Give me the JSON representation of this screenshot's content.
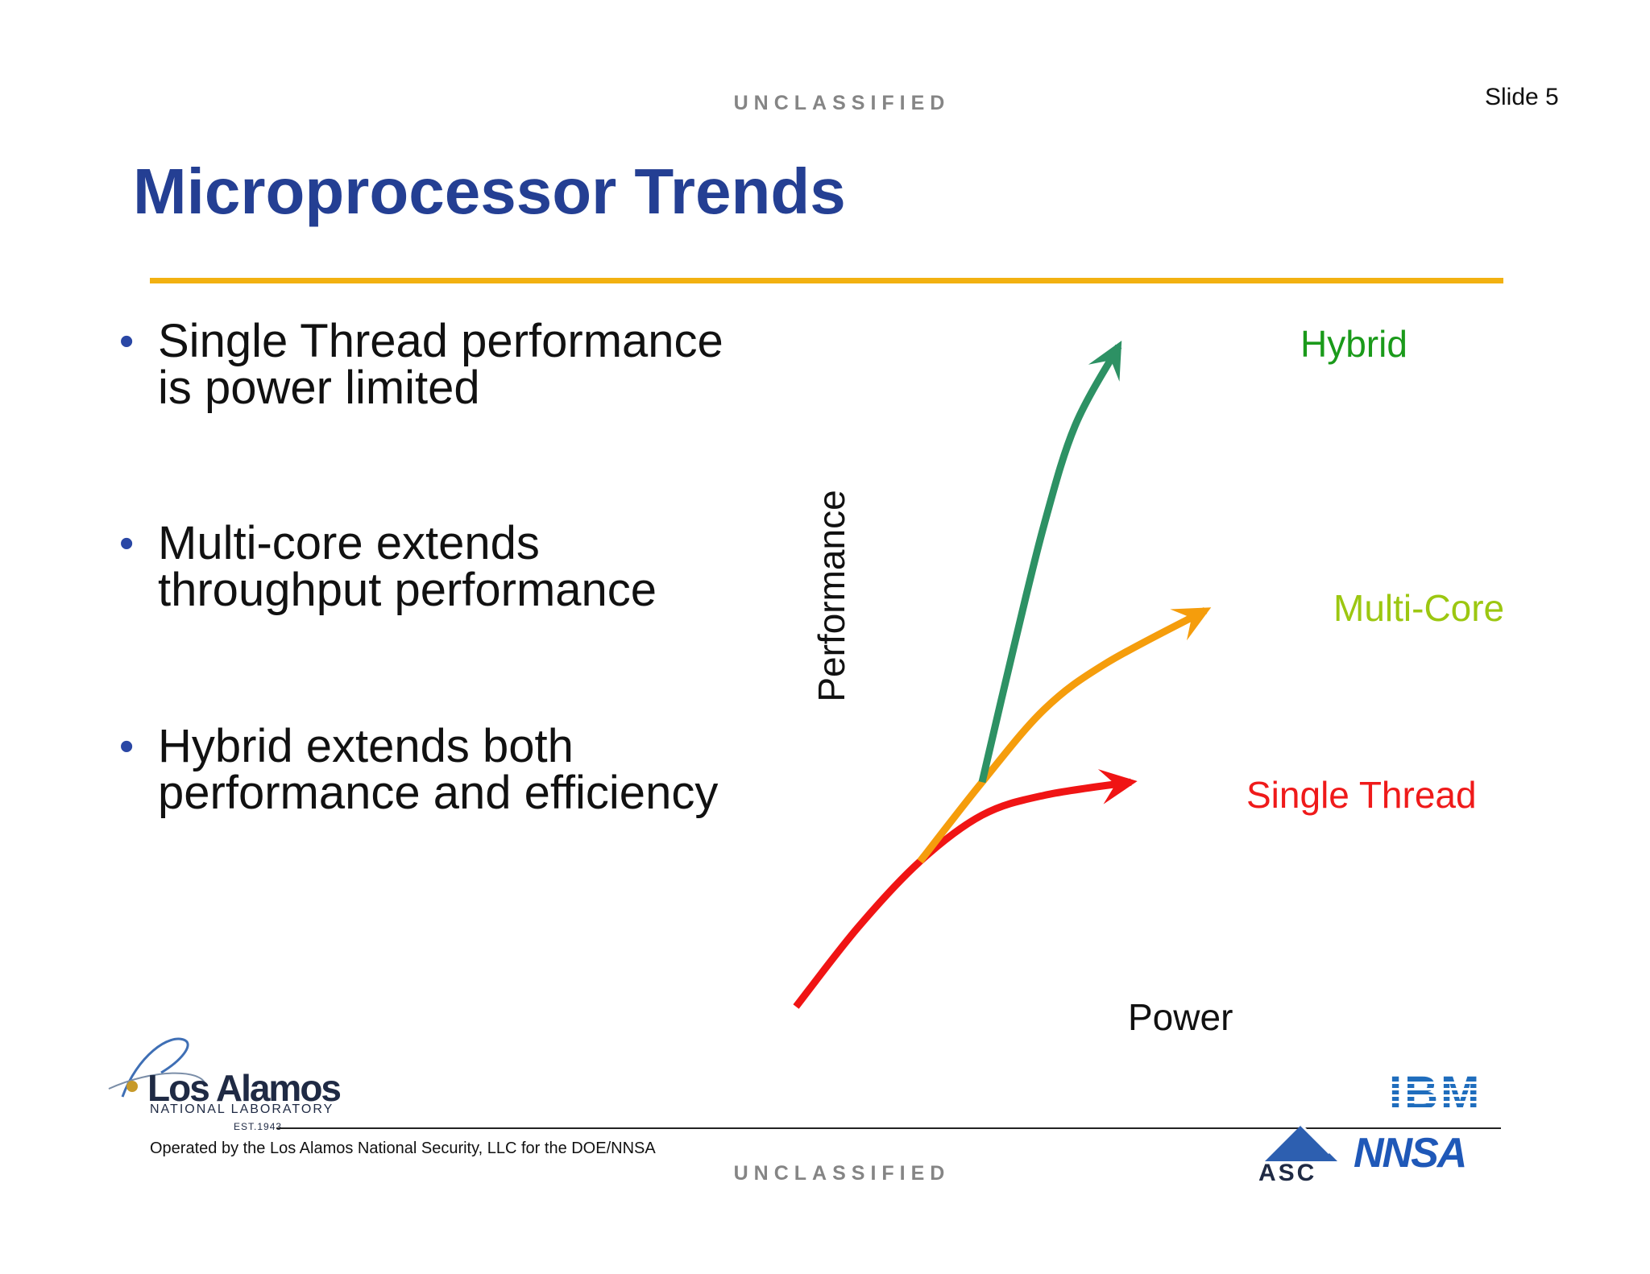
{
  "header": {
    "classification": "UNCLASSIFIED",
    "slide_number": "Slide 5"
  },
  "title": "Microprocessor Trends",
  "bullets": [
    {
      "text": "Single Thread performance\nis power limited"
    },
    {
      "text": "Multi-core extends\nthroughput performance"
    },
    {
      "text": "Hybrid extends both\nperformance and efficiency"
    }
  ],
  "chart_data": {
    "type": "line",
    "title": "",
    "xlabel": "Power",
    "ylabel": "Performance",
    "xlim": [
      0,
      10
    ],
    "ylim": [
      0,
      10
    ],
    "grid": false,
    "legend": "inline labels at line ends",
    "series": [
      {
        "name": "Single Thread",
        "color": "#f01414",
        "x": [
          0.0,
          1.0,
          2.0,
          3.0,
          4.0,
          5.4
        ],
        "y": [
          0.0,
          1.2,
          2.2,
          2.9,
          3.2,
          3.4
        ]
      },
      {
        "name": "Multi-Core",
        "color": "#f59d0c",
        "x": [
          2.0,
          3.0,
          4.0,
          5.0,
          6.6
        ],
        "y": [
          2.2,
          3.4,
          4.5,
          5.2,
          6.0
        ]
      },
      {
        "name": "Hybrid",
        "color": "#2d9164",
        "x": [
          3.0,
          3.5,
          4.0,
          4.5,
          5.2
        ],
        "y": [
          3.4,
          5.4,
          7.3,
          8.8,
          10.0
        ]
      }
    ]
  },
  "series_label_colors": {
    "Hybrid": "#1a9a1a",
    "Multi-Core": "#9cc711",
    "Single Thread": "#ef1a1a"
  },
  "footer": {
    "classification": "UNCLASSIFIED",
    "operated_by": "Operated by the Los Alamos National Security, LLC for the DOE/NNSA"
  },
  "logos": {
    "lanl": {
      "name": "Los Alamos",
      "subtitle": "NATIONAL LABORATORY",
      "est": "EST.1943"
    },
    "ibm": "IBM",
    "nnsa": "NNSA",
    "asc": "ASC"
  }
}
